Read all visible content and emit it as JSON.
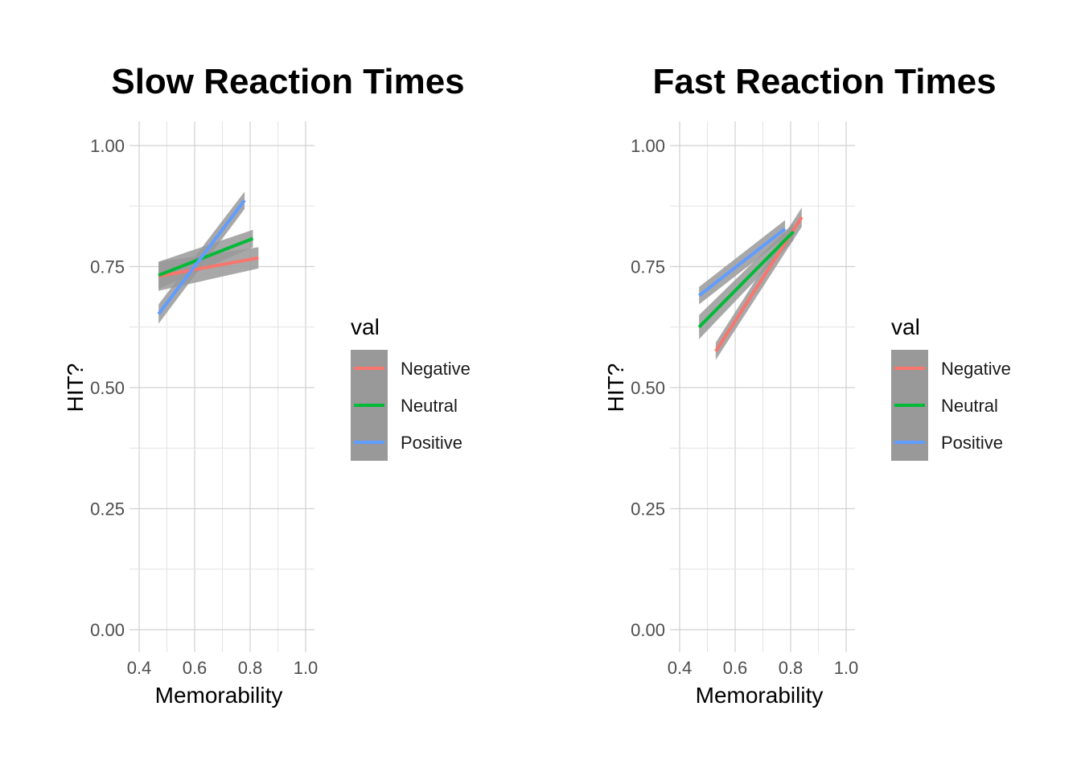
{
  "chart_data": [
    {
      "type": "line",
      "title": "Slow Reaction Times",
      "xlabel": "Memorability",
      "ylabel": "HIT?",
      "xlim": [
        0.4,
        1.0
      ],
      "ylim": [
        0.0,
        1.0
      ],
      "xticks": [
        "0.4",
        "0.6",
        "0.8",
        "1.0"
      ],
      "yticks": [
        "0.00",
        "0.25",
        "0.50",
        "0.75",
        "1.00"
      ],
      "legend": {
        "title": "val",
        "position": "right"
      },
      "grid": true,
      "series": [
        {
          "name": "Negative",
          "color": "#F8766D",
          "x": [
            0.47,
            0.83
          ],
          "y": [
            0.73,
            0.768
          ],
          "ci_half": [
            0.03,
            0.022
          ]
        },
        {
          "name": "Neutral",
          "color": "#00BA38",
          "x": [
            0.47,
            0.81
          ],
          "y": [
            0.732,
            0.808
          ],
          "ci_half": [
            0.028,
            0.018
          ]
        },
        {
          "name": "Positive",
          "color": "#619CFF",
          "x": [
            0.47,
            0.78
          ],
          "y": [
            0.652,
            0.887
          ],
          "ci_half": [
            0.02,
            0.018
          ]
        }
      ]
    },
    {
      "type": "line",
      "title": "Fast Reaction Times",
      "xlabel": "Memorability",
      "ylabel": "HIT?",
      "xlim": [
        0.4,
        1.0
      ],
      "ylim": [
        0.0,
        1.0
      ],
      "xticks": [
        "0.4",
        "0.6",
        "0.8",
        "1.0"
      ],
      "yticks": [
        "0.00",
        "0.25",
        "0.50",
        "0.75",
        "1.00"
      ],
      "legend": {
        "title": "val",
        "position": "right"
      },
      "grid": true,
      "series": [
        {
          "name": "Negative",
          "color": "#F8766D",
          "x": [
            0.53,
            0.84
          ],
          "y": [
            0.575,
            0.852
          ],
          "ci_half": [
            0.018,
            0.02
          ]
        },
        {
          "name": "Neutral",
          "color": "#00BA38",
          "x": [
            0.47,
            0.81
          ],
          "y": [
            0.625,
            0.822
          ],
          "ci_half": [
            0.025,
            0.018
          ]
        },
        {
          "name": "Positive",
          "color": "#619CFF",
          "x": [
            0.47,
            0.78
          ],
          "y": [
            0.69,
            0.828
          ],
          "ci_half": [
            0.018,
            0.018
          ]
        }
      ]
    }
  ]
}
